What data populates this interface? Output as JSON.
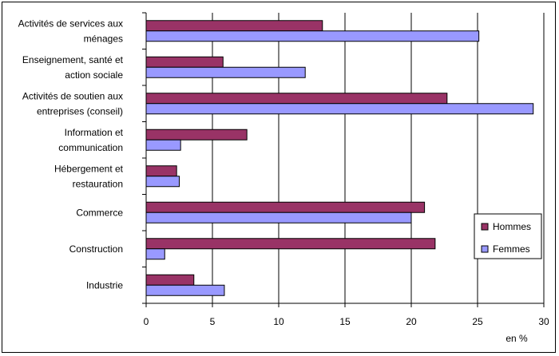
{
  "chart_data": {
    "type": "bar",
    "orientation": "horizontal",
    "categories": [
      [
        "Activités de services aux",
        "ménages"
      ],
      [
        "Enseignement, santé et",
        "action sociale"
      ],
      [
        "Activités de soutien aux",
        "entreprises (conseil)"
      ],
      [
        "Information et",
        "communication"
      ],
      [
        "Hébergement et",
        "restauration"
      ],
      [
        "Commerce"
      ],
      [
        "Construction"
      ],
      [
        "Industrie"
      ]
    ],
    "series": [
      {
        "name": "Hommes",
        "color": "#993366",
        "values": [
          13.3,
          5.8,
          22.7,
          7.6,
          2.3,
          21.0,
          21.8,
          3.6
        ]
      },
      {
        "name": "Femmes",
        "color": "#9999ff",
        "values": [
          25.1,
          12.0,
          29.2,
          2.6,
          2.5,
          20.0,
          1.4,
          5.9
        ]
      }
    ],
    "xlim": [
      0,
      30
    ],
    "xticks": [
      "0",
      "5",
      "10",
      "15",
      "20",
      "25",
      "30"
    ],
    "xlabel": "en %",
    "grid": true,
    "legend_position": "right"
  }
}
